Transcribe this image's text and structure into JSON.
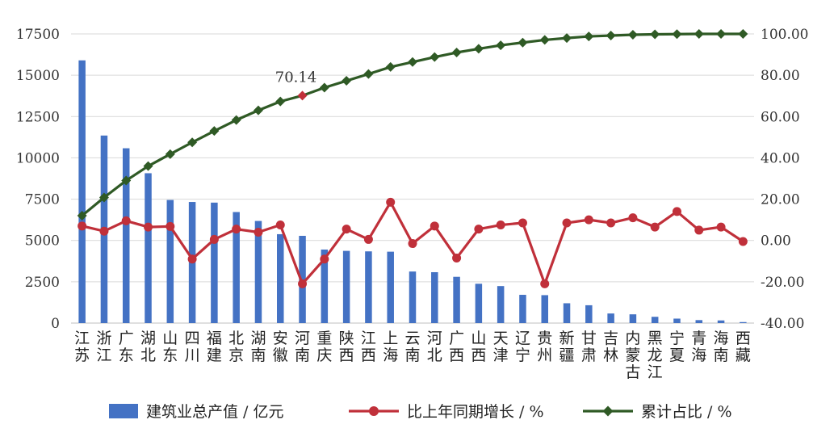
{
  "chart_data": {
    "type": "bar+line",
    "title": "",
    "categories": [
      "江苏",
      "浙江",
      "广东",
      "湖北",
      "山东",
      "四川",
      "福建",
      "北京",
      "湖南",
      "安徽",
      "河南",
      "重庆",
      "陕西",
      "江西",
      "上海",
      "云南",
      "河北",
      "广西",
      "山西",
      "天津",
      "辽宁",
      "贵州",
      "新疆",
      "甘肃",
      "吉林",
      "内蒙古",
      "黑龙江",
      "宁夏",
      "青海",
      "海南",
      "西藏"
    ],
    "series": [
      {
        "name": "建筑业总产值 / 亿元",
        "type": "bar",
        "axis": "left",
        "color": "#4472c4",
        "values": [
          15900,
          11350,
          10580,
          9070,
          7450,
          7330,
          7290,
          6720,
          6180,
          5380,
          5280,
          4450,
          4370,
          4340,
          4320,
          3120,
          3080,
          2800,
          2380,
          2240,
          1710,
          1690,
          1200,
          1080,
          580,
          530,
          380,
          270,
          180,
          160,
          60
        ]
      },
      {
        "name": "比上年同期增长 / %",
        "type": "line",
        "axis": "right",
        "color": "#c0303a",
        "values": [
          7.0,
          4.5,
          9.5,
          6.5,
          6.8,
          -9.0,
          0.5,
          5.5,
          4.0,
          7.5,
          -21.0,
          -9.0,
          5.5,
          0.5,
          18.5,
          -1.5,
          7.0,
          -8.5,
          5.5,
          7.5,
          8.5,
          -21.0,
          8.5,
          10.0,
          8.5,
          11.0,
          6.5,
          14.0,
          5.0,
          6.5,
          -0.5
        ]
      },
      {
        "name": "累计占比 / %",
        "type": "line",
        "axis": "right",
        "color": "#2f5a25",
        "values": [
          12.0,
          20.8,
          29.0,
          36.0,
          41.8,
          47.5,
          53.0,
          58.3,
          63.0,
          67.3,
          70.14,
          74.0,
          77.3,
          80.6,
          84.0,
          86.4,
          88.8,
          91.0,
          92.8,
          94.5,
          95.8,
          97.1,
          98.0,
          98.8,
          99.2,
          99.6,
          99.8,
          99.9,
          100.0,
          100.0,
          100.0
        ]
      }
    ],
    "left_axis": {
      "min": 0,
      "max": 17500,
      "ticks": [
        "0",
        "2500",
        "5000",
        "7500",
        "10000",
        "12500",
        "15000",
        "17500"
      ]
    },
    "right_axis": {
      "min": -40,
      "max": 100,
      "ticks": [
        "-40.00",
        "-20.00",
        "0.00",
        "20.00",
        "40.00",
        "60.00",
        "80.00",
        "100.00"
      ]
    },
    "annotation": {
      "text": "70.14",
      "category_index": 10,
      "series": "累计占比 / %",
      "highlight_color": "#c0303a"
    },
    "legend": {
      "position": "bottom",
      "items": [
        {
          "label": "建筑业总产值 / 亿元",
          "marker": "bar"
        },
        {
          "label": "比上年同期增长 / %",
          "marker": "circle-line"
        },
        {
          "label": "累计占比 / %",
          "marker": "diamond-line"
        }
      ]
    },
    "grid": true
  }
}
